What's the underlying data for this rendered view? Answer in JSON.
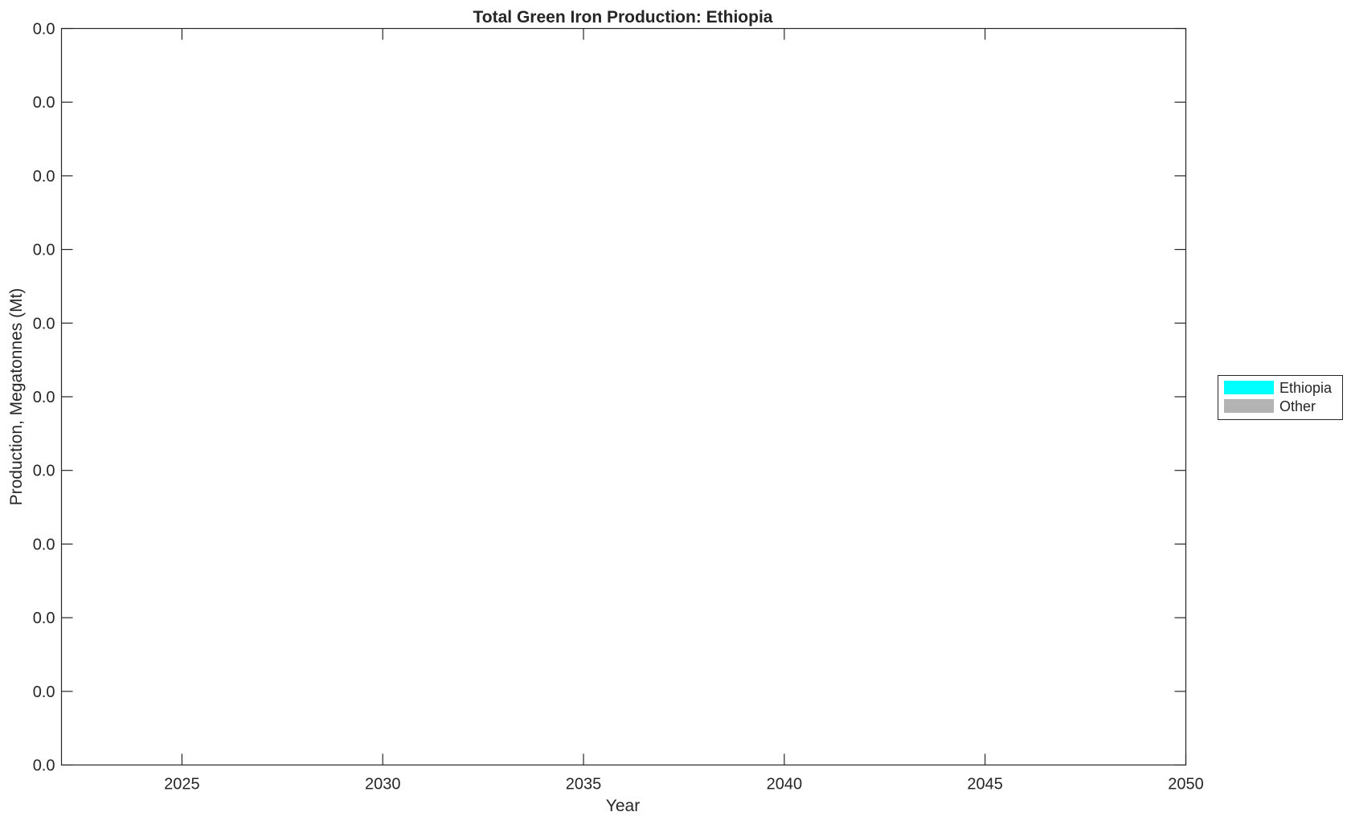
{
  "chart_data": {
    "type": "area",
    "title": "Total Green Iron Production: Ethiopia",
    "xlabel": "Year",
    "ylabel": "Production, Megatonnes (Mt)",
    "xlim": [
      2022,
      2050
    ],
    "x_ticks": [
      2025,
      2030,
      2035,
      2040,
      2045,
      2050
    ],
    "x_tick_labels": [
      "2025",
      "2030",
      "2035",
      "2040",
      "2045",
      "2050"
    ],
    "y_tick_labels": [
      "0.0",
      "0.0",
      "0.0",
      "0.0",
      "0.0",
      "0.0",
      "0.0",
      "0.0",
      "0.0",
      "0.0",
      "0.0"
    ],
    "grid": false,
    "legend_placement": "right",
    "series": [
      {
        "name": "Ethiopia",
        "color": "#00ffff",
        "values": []
      },
      {
        "name": "Other",
        "color": "#b3b3b3",
        "values": []
      }
    ]
  }
}
